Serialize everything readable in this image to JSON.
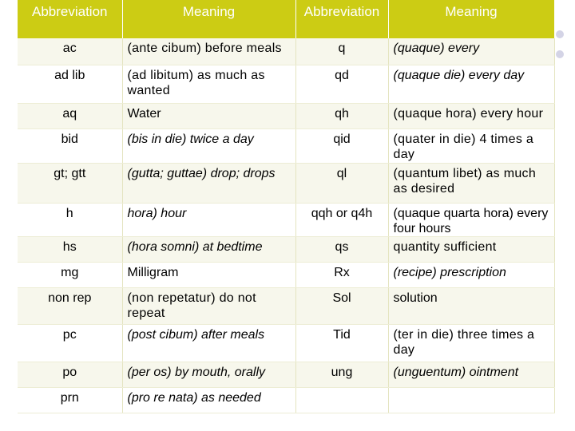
{
  "headers": [
    "Abbreviation",
    "Meaning",
    "Abbreviation",
    "Meaning"
  ],
  "rows": [
    [
      {
        "t": "ac"
      },
      {
        "t": "(ante cibum) before meals",
        "s": "small"
      },
      {
        "t": "q"
      },
      {
        "t": "(quaque) every",
        "s": "ital"
      }
    ],
    [
      {
        "t": "ad lib"
      },
      {
        "t": "(ad libitum) as much as wanted",
        "s": "small"
      },
      {
        "t": "qd"
      },
      {
        "t": "(quaque die) every day",
        "s": "ital"
      }
    ],
    [
      {
        "t": "aq"
      },
      {
        "t": "Water"
      },
      {
        "t": "qh"
      },
      {
        "t": "(quaque hora) every hour",
        "s": "small"
      }
    ],
    [
      {
        "t": "bid"
      },
      {
        "t": "(bis in die) twice a day",
        "s": "ital"
      },
      {
        "t": "qid"
      },
      {
        "t": "(quater in die) 4 times a day",
        "s": "small"
      }
    ],
    [
      {
        "t": "gt; gtt"
      },
      {
        "t": "(gutta; guttae) drop; drops",
        "s": "ital"
      },
      {
        "t": "ql"
      },
      {
        "t": "(quantum libet) as much as desired",
        "s": "small"
      }
    ],
    [
      {
        "t": "h"
      },
      {
        "t": "hora) hour",
        "s": "ital"
      },
      {
        "t": "qqh or q4h"
      },
      {
        "t": "(quaque quarta hora) every four hours",
        "s": "tiny"
      }
    ],
    [
      {
        "t": "hs"
      },
      {
        "t": "(hora somni) at bedtime",
        "s": "ital"
      },
      {
        "t": "qs"
      },
      {
        "t": "quantity sufficient",
        "s": "small"
      }
    ],
    [
      {
        "t": "mg"
      },
      {
        "t": "Milligram"
      },
      {
        "t": "Rx"
      },
      {
        "t": "(recipe) prescription",
        "s": "ital"
      }
    ],
    [
      {
        "t": "non rep"
      },
      {
        "t": "(non repetatur) do not repeat",
        "s": "small"
      },
      {
        "t": "Sol"
      },
      {
        "t": "solution"
      }
    ],
    [
      {
        "t": "pc"
      },
      {
        "t": "(post cibum) after meals",
        "s": "ital"
      },
      {
        "t": "Tid"
      },
      {
        "t": "(ter in die) three times a day",
        "s": "small"
      }
    ],
    [
      {
        "t": "po"
      },
      {
        "t": "(per os) by mouth, orally",
        "s": "ital"
      },
      {
        "t": "ung"
      },
      {
        "t": "(unguentum) ointment",
        "s": "ital"
      }
    ],
    [
      {
        "t": "prn"
      },
      {
        "t": "(pro re nata) as needed",
        "s": "ital"
      },
      {
        "t": ""
      },
      {
        "t": ""
      }
    ]
  ],
  "colors": {
    "header_bg": "#cccc14",
    "row_alt": "#f7f7ec",
    "dot": "#d4d4e6"
  }
}
